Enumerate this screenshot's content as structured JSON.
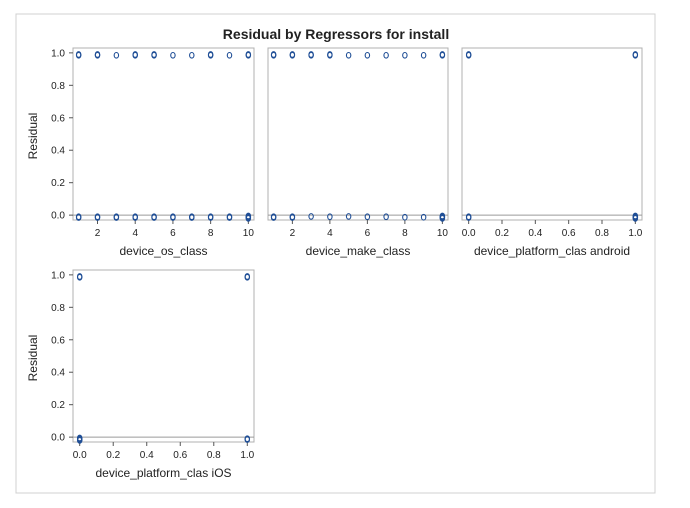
{
  "title": "Residual by Regressors for install",
  "colors": {
    "marker": "#1f4e96",
    "frame": "#b0b0b0",
    "refline": "#9a9a9a",
    "outer": "#d0d0d0"
  },
  "chart_data": [
    {
      "type": "scatter",
      "xlabel": "device_os_class",
      "ylabel": "Residual",
      "xlim": [
        0.7,
        10.3
      ],
      "ylim": [
        -0.03,
        1.03
      ],
      "xticks": [
        2,
        4,
        6,
        8,
        10
      ],
      "xtick_labels": [
        "2",
        "4",
        "6",
        "8",
        "10"
      ],
      "yticks": [
        0.0,
        0.2,
        0.4,
        0.6,
        0.8,
        1.0
      ],
      "ytick_labels": [
        "0.0",
        "0.2",
        "0.4",
        "0.6",
        "0.8",
        "1.0"
      ],
      "reference_line_y": 0,
      "points": [
        [
          1,
          0.99
        ],
        [
          1,
          0.985
        ],
        [
          2,
          0.99
        ],
        [
          2,
          0.985
        ],
        [
          3,
          0.985
        ],
        [
          4,
          0.99
        ],
        [
          4,
          0.985
        ],
        [
          5,
          0.99
        ],
        [
          5,
          0.985
        ],
        [
          6,
          0.985
        ],
        [
          7,
          0.985
        ],
        [
          8,
          0.99
        ],
        [
          8,
          0.985
        ],
        [
          9,
          0.985
        ],
        [
          10,
          0.99
        ],
        [
          10,
          0.985
        ],
        [
          1,
          -0.01
        ],
        [
          1,
          -0.015
        ],
        [
          2,
          -0.01
        ],
        [
          2,
          -0.015
        ],
        [
          3,
          -0.01
        ],
        [
          3,
          -0.015
        ],
        [
          4,
          -0.01
        ],
        [
          4,
          -0.015
        ],
        [
          5,
          -0.01
        ],
        [
          5,
          -0.015
        ],
        [
          6,
          -0.01
        ],
        [
          6,
          -0.015
        ],
        [
          7,
          -0.01
        ],
        [
          7,
          -0.015
        ],
        [
          8,
          -0.01
        ],
        [
          8,
          -0.015
        ],
        [
          9,
          -0.01
        ],
        [
          9,
          -0.015
        ],
        [
          10,
          -0.005
        ],
        [
          10,
          -0.01
        ],
        [
          10,
          -0.015
        ],
        [
          10,
          -0.02
        ]
      ]
    },
    {
      "type": "scatter",
      "xlabel": "device_make_class",
      "ylabel": "",
      "xlim": [
        0.7,
        10.3
      ],
      "ylim": [
        -0.03,
        1.03
      ],
      "xticks": [
        2,
        4,
        6,
        8,
        10
      ],
      "xtick_labels": [
        "2",
        "4",
        "6",
        "8",
        "10"
      ],
      "yticks": [],
      "ytick_labels": [],
      "reference_line_y": 0,
      "points": [
        [
          1,
          0.99
        ],
        [
          1,
          0.985
        ],
        [
          2,
          0.99
        ],
        [
          2,
          0.985
        ],
        [
          3,
          0.99
        ],
        [
          3,
          0.985
        ],
        [
          4,
          0.99
        ],
        [
          4,
          0.985
        ],
        [
          5,
          0.985
        ],
        [
          6,
          0.985
        ],
        [
          7,
          0.985
        ],
        [
          8,
          0.985
        ],
        [
          9,
          0.985
        ],
        [
          10,
          0.99
        ],
        [
          10,
          0.985
        ],
        [
          1,
          -0.01
        ],
        [
          1,
          -0.015
        ],
        [
          2,
          -0.01
        ],
        [
          2,
          -0.015
        ],
        [
          3,
          -0.008
        ],
        [
          4,
          -0.01
        ],
        [
          5,
          -0.008
        ],
        [
          6,
          -0.01
        ],
        [
          7,
          -0.01
        ],
        [
          8,
          -0.013
        ],
        [
          9,
          -0.013
        ],
        [
          10,
          -0.005
        ],
        [
          10,
          -0.01
        ],
        [
          10,
          -0.015
        ],
        [
          10,
          -0.02
        ]
      ]
    },
    {
      "type": "scatter",
      "xlabel": "device_platform_clas android",
      "ylabel": "",
      "xlim": [
        -0.04,
        1.04
      ],
      "ylim": [
        -0.03,
        1.03
      ],
      "xticks": [
        0,
        0.2,
        0.4,
        0.6,
        0.8,
        1.0
      ],
      "xtick_labels": [
        "0.0",
        "0.2",
        "0.4",
        "0.6",
        "0.8",
        "1.0"
      ],
      "yticks": [],
      "ytick_labels": [],
      "reference_line_y": 0,
      "points": [
        [
          0,
          0.99
        ],
        [
          0,
          0.985
        ],
        [
          1,
          0.99
        ],
        [
          1,
          0.985
        ],
        [
          0,
          -0.01
        ],
        [
          0,
          -0.015
        ],
        [
          1,
          -0.005
        ],
        [
          1,
          -0.01
        ],
        [
          1,
          -0.015
        ],
        [
          1,
          -0.02
        ]
      ]
    },
    {
      "type": "scatter",
      "xlabel": "device_platform_clas iOS",
      "ylabel": "Residual",
      "xlim": [
        -0.04,
        1.04
      ],
      "ylim": [
        -0.03,
        1.03
      ],
      "xticks": [
        0,
        0.2,
        0.4,
        0.6,
        0.8,
        1.0
      ],
      "xtick_labels": [
        "0.0",
        "0.2",
        "0.4",
        "0.6",
        "0.8",
        "1.0"
      ],
      "yticks": [
        0.0,
        0.2,
        0.4,
        0.6,
        0.8,
        1.0
      ],
      "ytick_labels": [
        "0.0",
        "0.2",
        "0.4",
        "0.6",
        "0.8",
        "1.0"
      ],
      "reference_line_y": 0,
      "points": [
        [
          0,
          0.99
        ],
        [
          0,
          0.985
        ],
        [
          1,
          0.99
        ],
        [
          1,
          0.985
        ],
        [
          0,
          -0.005
        ],
        [
          0,
          -0.01
        ],
        [
          0,
          -0.015
        ],
        [
          0,
          -0.02
        ],
        [
          1,
          -0.01
        ],
        [
          1,
          -0.015
        ]
      ]
    }
  ]
}
